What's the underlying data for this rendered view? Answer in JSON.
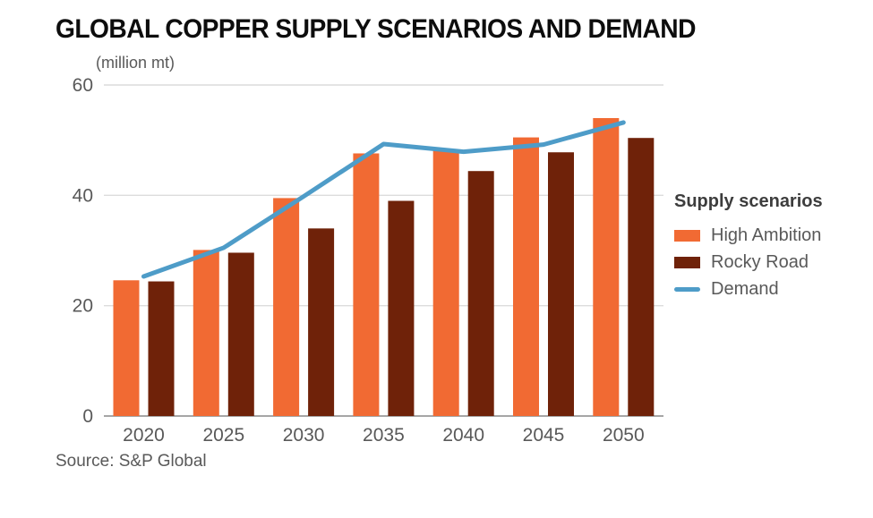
{
  "page": {
    "title": "GLOBAL COPPER SUPPLY SCENARIOS AND DEMAND",
    "unit_label": "(million mt)",
    "source": "Source: S&P Global"
  },
  "legend": {
    "title": "Supply scenarios",
    "items": [
      {
        "label": "High Ambition",
        "color": "#F16A33",
        "swatch": "rect"
      },
      {
        "label": "Rocky Road",
        "color": "#6F2209",
        "swatch": "rect"
      },
      {
        "label": "Demand",
        "color": "#4E9CC8",
        "swatch": "line"
      }
    ]
  },
  "chart_data": {
    "type": "bar",
    "subtype": "grouped-bars-with-line-overlay",
    "title": "GLOBAL COPPER SUPPLY SCENARIOS AND DEMAND",
    "xlabel": "",
    "ylabel": "(million mt)",
    "categories": [
      "2020",
      "2025",
      "2030",
      "2035",
      "2040",
      "2045",
      "2050"
    ],
    "series": [
      {
        "name": "High Ambition",
        "type": "bar",
        "color": "#F16A33",
        "values": [
          24.6,
          30.1,
          39.5,
          47.6,
          48.2,
          50.5,
          54.0
        ]
      },
      {
        "name": "Rocky Road",
        "type": "bar",
        "color": "#6F2209",
        "values": [
          24.4,
          29.6,
          34.0,
          39.0,
          44.4,
          47.8,
          50.4
        ]
      },
      {
        "name": "Demand",
        "type": "line",
        "color": "#4E9CC8",
        "values": [
          25.3,
          30.5,
          39.8,
          49.3,
          47.9,
          49.2,
          53.2
        ]
      }
    ],
    "ylim": [
      0,
      60
    ],
    "yticks": [
      0,
      20,
      40,
      60
    ],
    "grid": "horizontal",
    "legend_title": "Supply scenarios",
    "legend_position": "right",
    "source": "Source: S&P Global"
  },
  "colors": {
    "grid_line": "#dcdcdc",
    "axis_line": "#a6a6a6",
    "tick_text": "#595959",
    "title_text": "#0d0d0d",
    "legend_title_text": "#3d3d3d"
  }
}
